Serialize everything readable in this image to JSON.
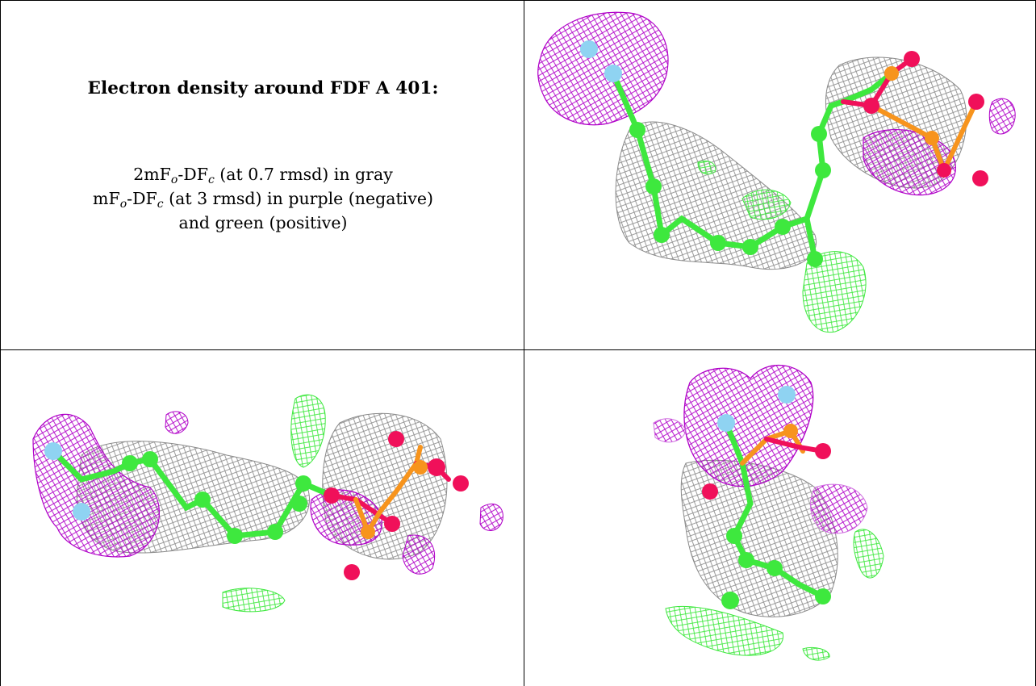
{
  "title": "Electron density around FDF A 401:",
  "legend": {
    "line1": {
      "prefix": "2mF",
      "sub1": "o",
      "mid": "-DF",
      "sub2": "c",
      "suffix": " (at 0.7 rmsd) in gray"
    },
    "line2": {
      "prefix": "mF",
      "sub1": "o",
      "mid": "-DF",
      "sub2": "c",
      "suffix": " (at 3 rmsd) in purple (negative)"
    },
    "line3": "and green (positive)"
  },
  "panels": [
    {
      "view": "top-right"
    },
    {
      "view": "bottom-left"
    },
    {
      "view": "bottom-right"
    }
  ],
  "colors": {
    "map_2fofc": "#8a8a8a",
    "map_negative": "#b000c8",
    "map_positive": "#3ee83e",
    "carbon": "#3ee83e",
    "oxygen": "#f0105a",
    "phosphorus": "#f7941d",
    "fluorine": "#8fd3f2"
  }
}
